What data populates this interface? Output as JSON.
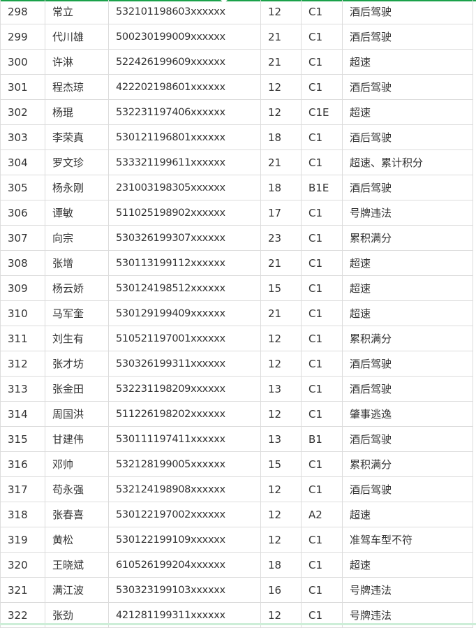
{
  "accent_color": "#1aa14a",
  "rows": [
    [
      "298",
      "常立",
      "532101198603xxxxxx",
      "12",
      "C1",
      "酒后驾驶"
    ],
    [
      "299",
      "代川雄",
      "500230199009xxxxxx",
      "21",
      "C1",
      "酒后驾驶"
    ],
    [
      "300",
      "许淋",
      "522426199609xxxxxx",
      "21",
      "C1",
      "超速"
    ],
    [
      "301",
      "程杰琼",
      "422202198601xxxxxx",
      "12",
      "C1",
      "酒后驾驶"
    ],
    [
      "302",
      "杨琨",
      "532231197406xxxxxx",
      "12",
      "C1E",
      "超速"
    ],
    [
      "303",
      "李荣真",
      "530121196801xxxxxx",
      "18",
      "C1",
      "酒后驾驶"
    ],
    [
      "304",
      "罗文珍",
      "533321199611xxxxxx",
      "21",
      "C1",
      "超速、累计积分"
    ],
    [
      "305",
      "杨永刚",
      "231003198305xxxxxx",
      "18",
      "B1E",
      "酒后驾驶"
    ],
    [
      "306",
      "谭敏",
      "511025198902xxxxxx",
      "17",
      "C1",
      "号牌违法"
    ],
    [
      "307",
      "向宗",
      "530326199307xxxxxx",
      "23",
      "C1",
      "累积满分"
    ],
    [
      "308",
      "张增",
      "530113199112xxxxxx",
      "21",
      "C1",
      "超速"
    ],
    [
      "309",
      "杨云娇",
      "530124198512xxxxxx",
      "15",
      "C1",
      "超速"
    ],
    [
      "310",
      "马军奎",
      "530129199409xxxxxx",
      "21",
      "C1",
      "超速"
    ],
    [
      "311",
      "刘生有",
      "510521197001xxxxxx",
      "12",
      "C1",
      "累积满分"
    ],
    [
      "312",
      "张才坊",
      "530326199311xxxxxx",
      "12",
      "C1",
      "酒后驾驶"
    ],
    [
      "313",
      "张金田",
      "532231198209xxxxxx",
      "13",
      "C1",
      "酒后驾驶"
    ],
    [
      "314",
      "周国洪",
      "511226198202xxxxxx",
      "12",
      "C1",
      "肇事逃逸"
    ],
    [
      "315",
      "甘建伟",
      "530111197411xxxxxx",
      "13",
      "B1",
      "酒后驾驶"
    ],
    [
      "316",
      "邓帅",
      "532128199005xxxxxx",
      "15",
      "C1",
      "累积满分"
    ],
    [
      "317",
      "苟永强",
      "532124198908xxxxxx",
      "12",
      "C1",
      "酒后驾驶"
    ],
    [
      "318",
      "张春喜",
      "530122197002xxxxxx",
      "12",
      "A2",
      "超速"
    ],
    [
      "319",
      "黄松",
      "530122199109xxxxxx",
      "12",
      "C1",
      "准驾车型不符"
    ],
    [
      "320",
      "王晓斌",
      "610526199204xxxxxx",
      "18",
      "C1",
      "超速"
    ],
    [
      "321",
      "满江波",
      "530323199103xxxxxx",
      "16",
      "C1",
      "号牌违法"
    ],
    [
      "322",
      "张劲",
      "421281199311xxxxxx",
      "12",
      "C1",
      "号牌违法"
    ]
  ]
}
